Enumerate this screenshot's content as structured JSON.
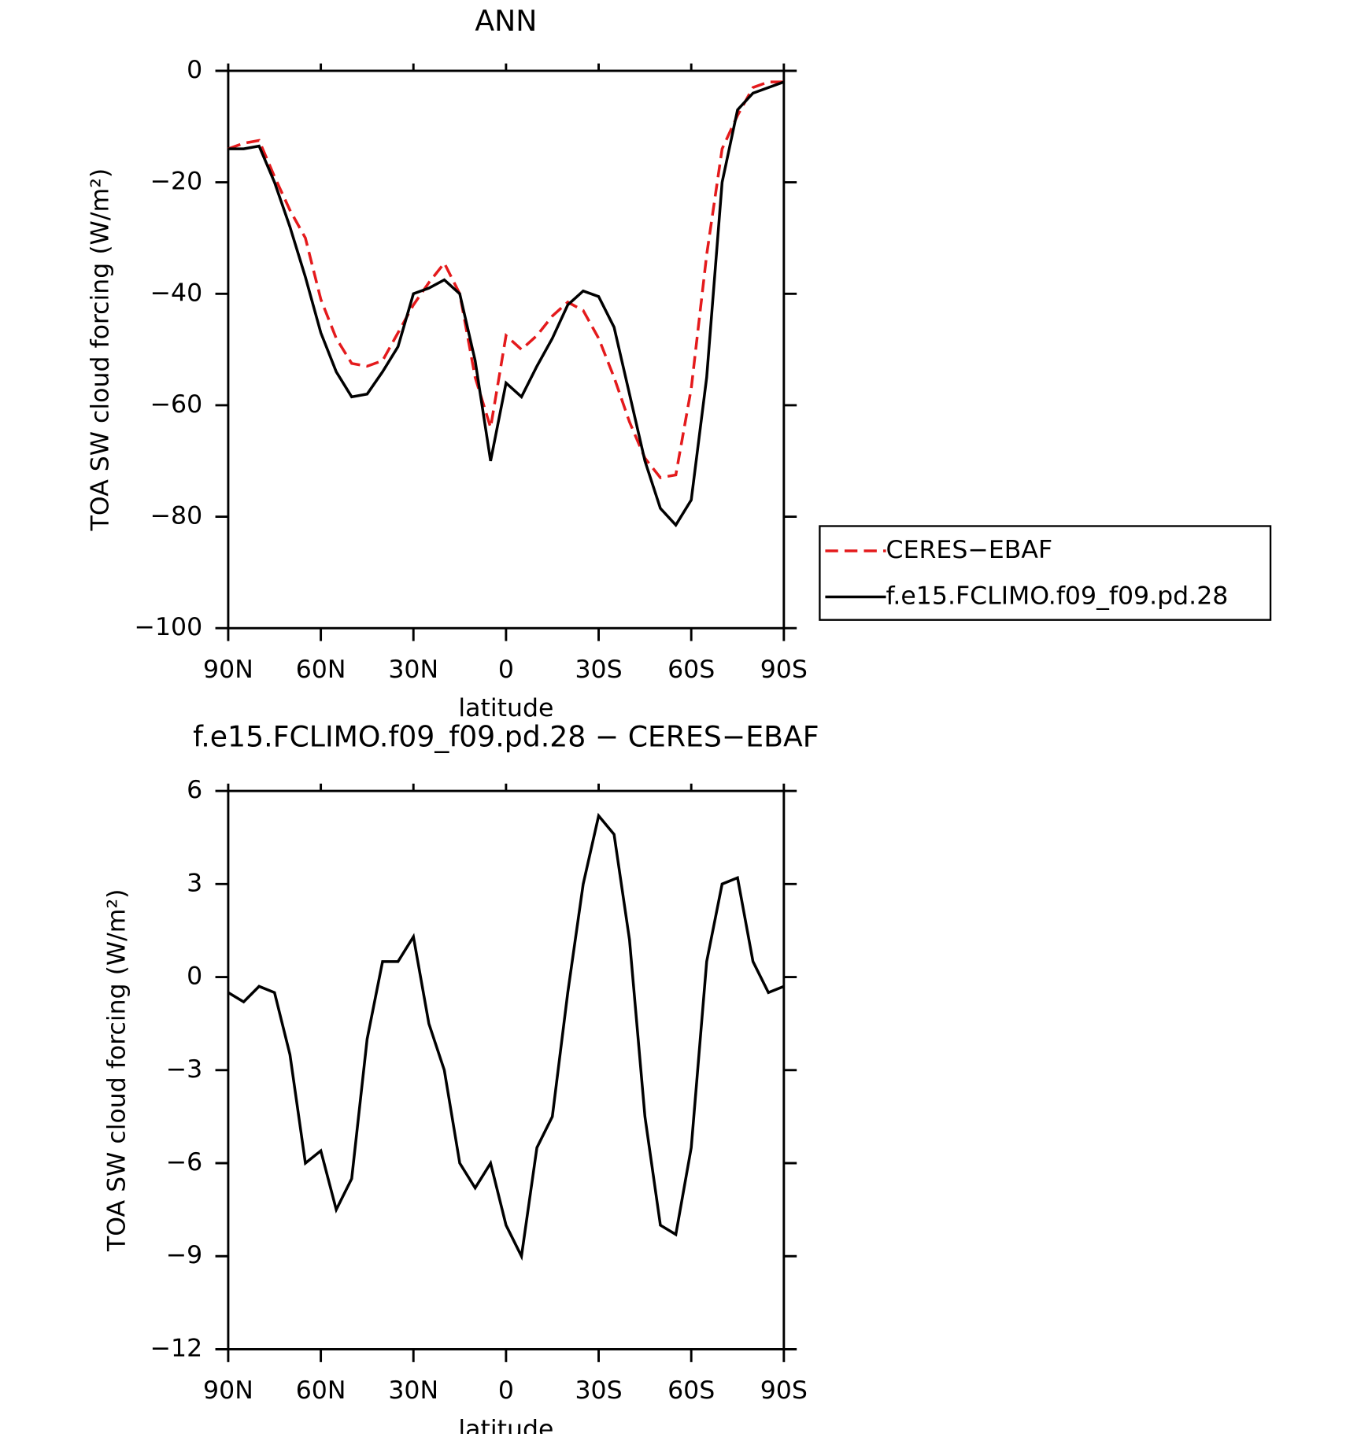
{
  "chart_data": [
    {
      "type": "line",
      "title": "ANN",
      "xlabel": "latitude",
      "ylabel": "TOA SW cloud forcing (W/m²)",
      "x": [
        90,
        85,
        80,
        75,
        70,
        65,
        60,
        55,
        50,
        45,
        40,
        35,
        30,
        25,
        20,
        15,
        10,
        5,
        0,
        -5,
        -10,
        -15,
        -20,
        -25,
        -30,
        -35,
        -40,
        -45,
        -50,
        -55,
        -60,
        -65,
        -70,
        -75,
        -80,
        -85,
        -90
      ],
      "series": [
        {
          "name": "CERES−EBAF",
          "color": "#e41a1c",
          "dash": "dashed",
          "values": [
            -14,
            -13,
            -12.5,
            -19,
            -25,
            -30,
            -41,
            -48,
            -52.5,
            -53,
            -52,
            -47,
            -42,
            -38,
            -34.5,
            -40,
            -55,
            -64,
            -47.5,
            -50,
            -47.5,
            -44,
            -41.5,
            -43,
            -48,
            -55,
            -63,
            -69.5,
            -73,
            -72.5,
            -57,
            -33,
            -14,
            -8,
            -3,
            -2,
            -2
          ]
        },
        {
          "name": "f.e15.FCLIMO.f09_f09.pd.28",
          "color": "#000000",
          "dash": "solid",
          "values": [
            -14,
            -14,
            -13.5,
            -20,
            -28,
            -37,
            -47,
            -54,
            -58.5,
            -58,
            -54,
            -49.5,
            -40,
            -39,
            -37.5,
            -40,
            -52,
            -70,
            -56,
            -58.5,
            -53,
            -48,
            -42,
            -39.5,
            -40.5,
            -46,
            -58,
            -70,
            -78.5,
            -81.5,
            -77,
            -55,
            -20,
            -7,
            -4,
            -3,
            -2
          ]
        }
      ],
      "xlim": [
        90,
        -90
      ],
      "xticks": [
        {
          "value": 90,
          "label": "90N"
        },
        {
          "value": 60,
          "label": "60N"
        },
        {
          "value": 30,
          "label": "30N"
        },
        0,
        {
          "value": -30,
          "label": "30S"
        },
        {
          "value": -60,
          "label": "60S"
        },
        {
          "value": -90,
          "label": "90S"
        }
      ],
      "ylim": [
        -100,
        0
      ],
      "yticks": [
        0,
        {
          "value": -20,
          "label": "−20"
        },
        {
          "value": -40,
          "label": "−40"
        },
        {
          "value": -60,
          "label": "−60"
        },
        {
          "value": -80,
          "label": "−80"
        },
        {
          "value": -100,
          "label": "−100"
        }
      ],
      "legend": "outside-right"
    },
    {
      "type": "line",
      "title": "f.e15.FCLIMO.f09_f09.pd.28 − CERES−EBAF",
      "xlabel": "latitude",
      "ylabel": "TOA SW cloud forcing (W/m²)",
      "x": [
        90,
        85,
        80,
        75,
        70,
        65,
        60,
        55,
        50,
        45,
        40,
        35,
        30,
        25,
        20,
        15,
        10,
        5,
        0,
        -5,
        -10,
        -15,
        -20,
        -25,
        -30,
        -35,
        -40,
        -45,
        -50,
        -55,
        -60,
        -65,
        -70,
        -75,
        -80,
        -85,
        -90
      ],
      "series": [
        {
          "color": "#000000",
          "dash": "solid",
          "values": [
            -0.5,
            -0.8,
            -0.3,
            -0.5,
            -2.5,
            -6,
            -5.6,
            -7.5,
            -6.5,
            -2,
            0.5,
            0.5,
            1.3,
            -1.5,
            -3,
            -6,
            -6.8,
            -6,
            -8,
            -9,
            -5.5,
            -4.5,
            -0.5,
            3,
            5.2,
            4.6,
            1.2,
            -4.5,
            -8,
            -8.3,
            -5.5,
            0.5,
            3,
            3.2,
            0.5,
            -0.5,
            -0.3
          ]
        }
      ],
      "xlim": [
        90,
        -90
      ],
      "xticks": [
        {
          "value": 90,
          "label": "90N"
        },
        {
          "value": 60,
          "label": "60N"
        },
        {
          "value": 30,
          "label": "30N"
        },
        0,
        {
          "value": -30,
          "label": "30S"
        },
        {
          "value": -60,
          "label": "60S"
        },
        {
          "value": -90,
          "label": "90S"
        }
      ],
      "ylim": [
        -12,
        6
      ],
      "yticks": [
        6,
        3,
        0,
        {
          "value": -3,
          "label": "−3"
        },
        {
          "value": -6,
          "label": "−6"
        },
        {
          "value": -9,
          "label": "−9"
        },
        {
          "value": -12,
          "label": "−12"
        }
      ]
    }
  ]
}
